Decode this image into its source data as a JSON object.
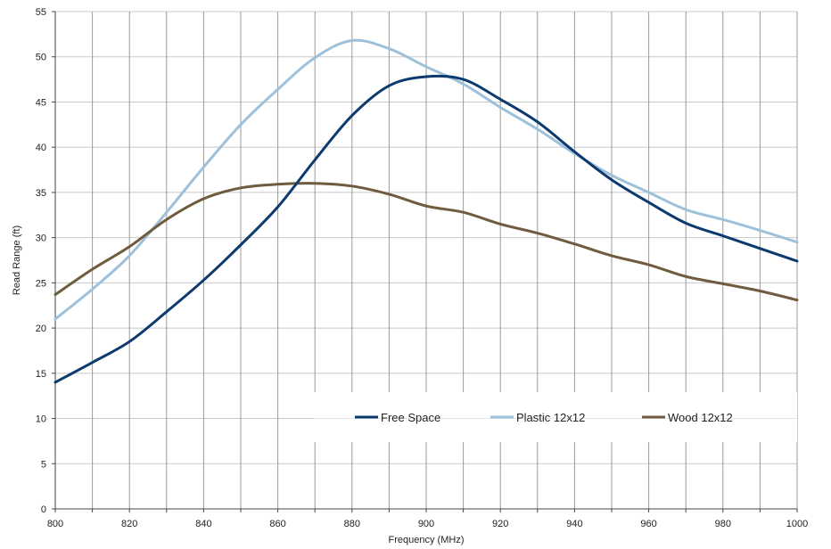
{
  "chart_data": {
    "type": "line",
    "title": "",
    "xlabel": "Frequency (MHz)",
    "ylabel": "Read Range (ft)",
    "xlim": [
      800,
      1000
    ],
    "ylim": [
      0,
      55
    ],
    "x_ticks": [
      "800",
      "820",
      "840",
      "860",
      "880",
      "900",
      "920",
      "940",
      "960",
      "980",
      "1000"
    ],
    "y_ticks": [
      "0",
      "5",
      "10",
      "15",
      "20",
      "25",
      "30",
      "35",
      "40",
      "45",
      "50",
      "55"
    ],
    "x_gridlines": [
      800,
      810,
      820,
      830,
      840,
      850,
      860,
      870,
      880,
      890,
      900,
      910,
      920,
      930,
      940,
      950,
      960,
      970,
      980,
      990,
      1000
    ],
    "grid": true,
    "legend_position": "bottom-right inside plot",
    "x": [
      800,
      810,
      820,
      830,
      840,
      850,
      860,
      870,
      880,
      890,
      900,
      910,
      920,
      930,
      940,
      950,
      960,
      970,
      980,
      990,
      1000
    ],
    "series": [
      {
        "name": "Free Space",
        "color": "#0d3a6e",
        "values": [
          14.0,
          16.2,
          18.5,
          21.8,
          25.3,
          29.2,
          33.4,
          38.6,
          43.5,
          46.8,
          47.8,
          47.5,
          45.3,
          42.8,
          39.5,
          36.4,
          33.9,
          31.6,
          30.2,
          28.8,
          27.4
        ]
      },
      {
        "name": "Plastic 12x12",
        "color": "#9ec1db",
        "values": [
          21.0,
          24.3,
          28.0,
          32.8,
          37.8,
          42.5,
          46.4,
          49.9,
          51.8,
          50.9,
          48.9,
          47.0,
          44.4,
          42.0,
          39.3,
          36.9,
          35.0,
          33.1,
          32.0,
          30.8,
          29.5
        ]
      },
      {
        "name": "Wood 12x12",
        "color": "#6f5c3e",
        "values": [
          23.7,
          26.5,
          29.0,
          32.0,
          34.3,
          35.5,
          35.9,
          36.0,
          35.7,
          34.8,
          33.5,
          32.8,
          31.5,
          30.5,
          29.3,
          28.0,
          27.0,
          25.7,
          24.9,
          24.1,
          23.1
        ]
      }
    ]
  }
}
